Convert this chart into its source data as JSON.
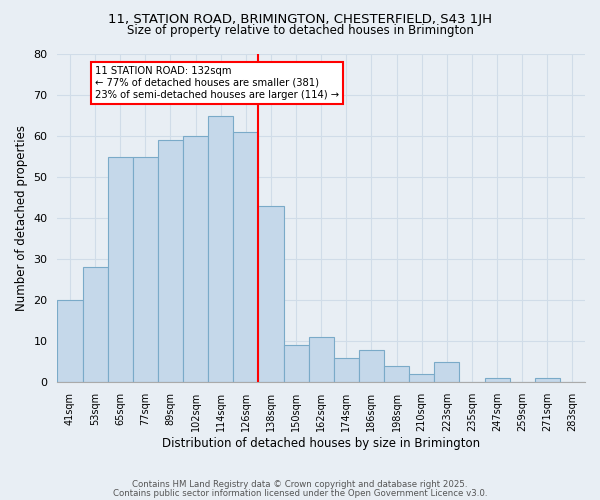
{
  "title1": "11, STATION ROAD, BRIMINGTON, CHESTERFIELD, S43 1JH",
  "title2": "Size of property relative to detached houses in Brimington",
  "xlabel": "Distribution of detached houses by size in Brimington",
  "ylabel": "Number of detached properties",
  "bar_color": "#c5d8ea",
  "bar_edge_color": "#7aaac8",
  "categories": [
    "41sqm",
    "53sqm",
    "65sqm",
    "77sqm",
    "89sqm",
    "102sqm",
    "114sqm",
    "126sqm",
    "138sqm",
    "150sqm",
    "162sqm",
    "174sqm",
    "186sqm",
    "198sqm",
    "210sqm",
    "223sqm",
    "235sqm",
    "247sqm",
    "259sqm",
    "271sqm",
    "283sqm"
  ],
  "values": [
    20,
    28,
    55,
    55,
    59,
    60,
    65,
    61,
    43,
    9,
    11,
    6,
    8,
    4,
    2,
    5,
    0,
    1,
    0,
    1,
    0
  ],
  "annotation_title": "11 STATION ROAD: 132sqm",
  "annotation_line1": "← 77% of detached houses are smaller (381)",
  "annotation_line2": "23% of semi-detached houses are larger (114) →",
  "vline_x": 7.5,
  "ylim": [
    0,
    80
  ],
  "yticks": [
    0,
    10,
    20,
    30,
    40,
    50,
    60,
    70,
    80
  ],
  "footnote1": "Contains HM Land Registry data © Crown copyright and database right 2025.",
  "footnote2": "Contains public sector information licensed under the Open Government Licence v3.0.",
  "background_color": "#e8eef4"
}
